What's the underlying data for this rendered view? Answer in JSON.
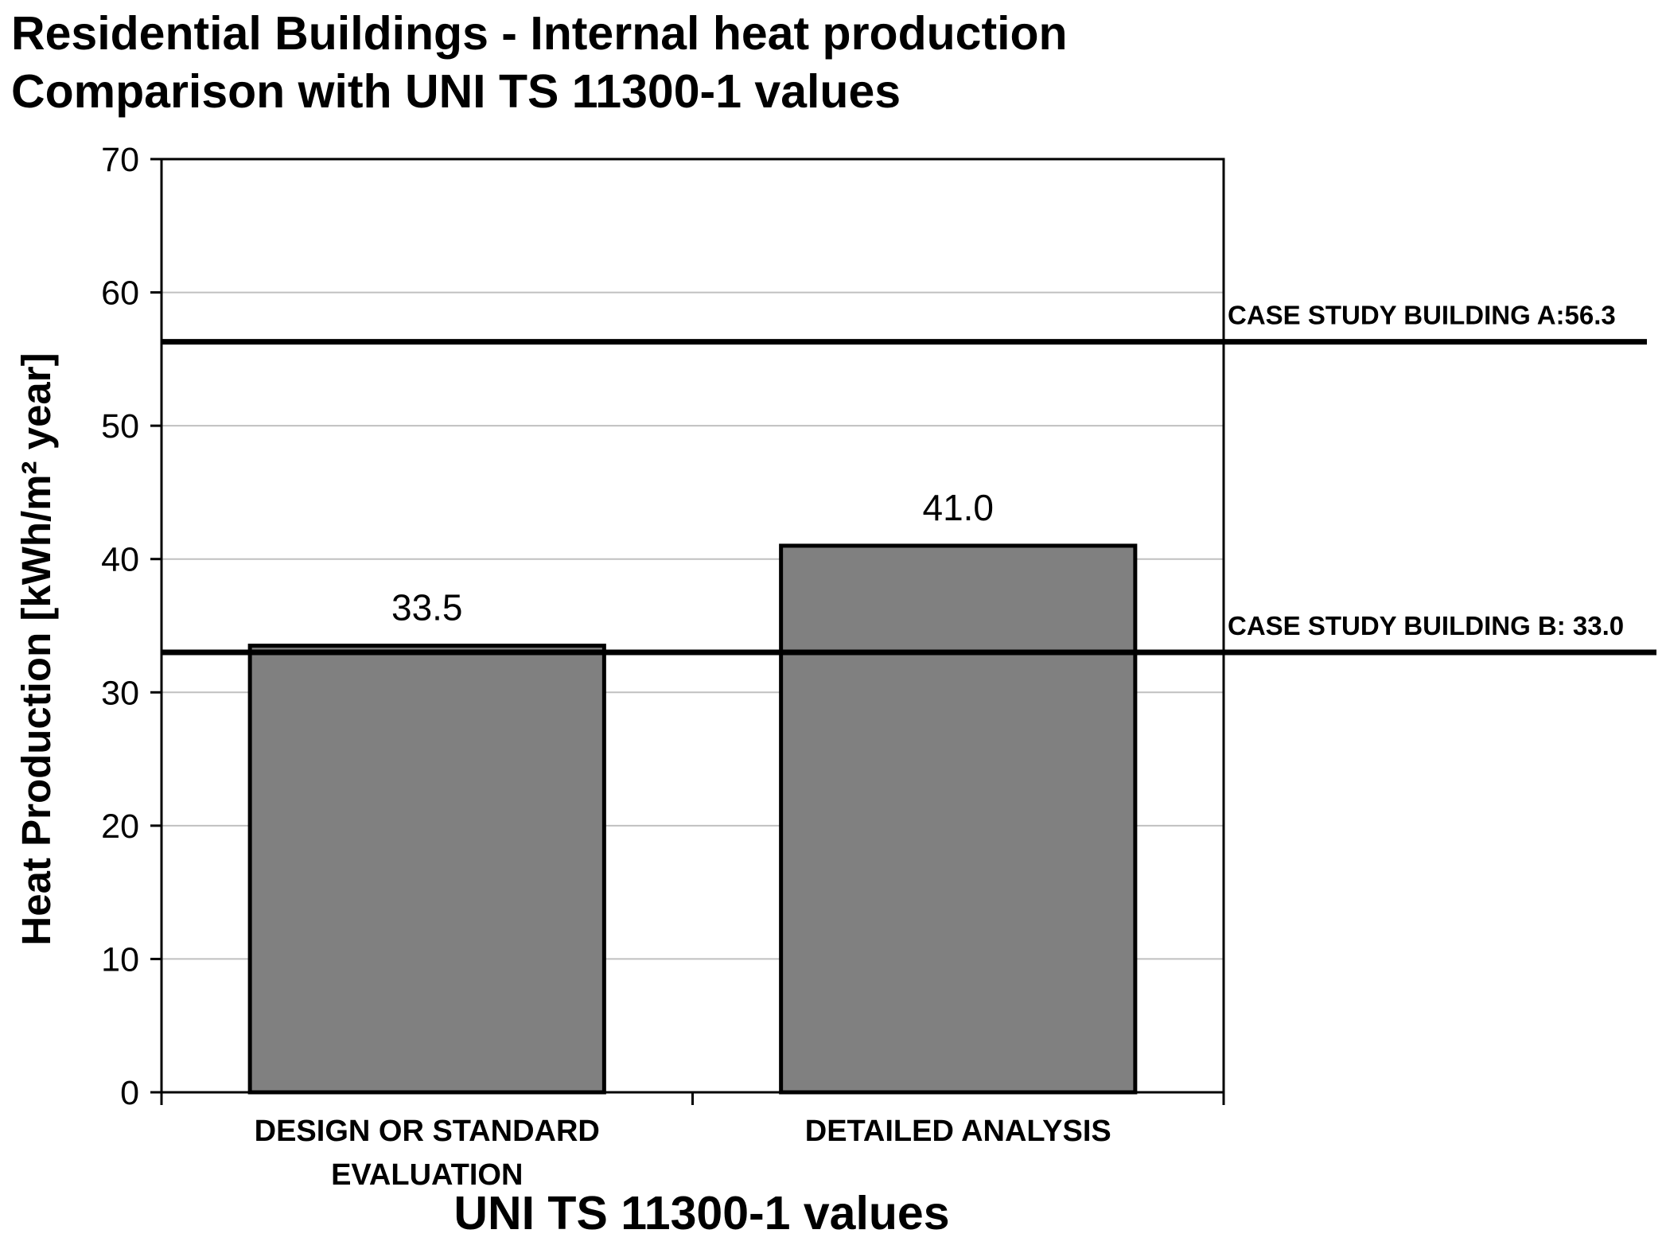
{
  "chart_data": {
    "type": "bar",
    "title": "Residential Buildings - Internal heat production",
    "subtitle": "Comparison with UNI TS 11300-1 values",
    "xlabel": "UNI TS 11300-1 values",
    "ylabel": "Heat Production [kWh/m² year]",
    "ylim": [
      0,
      70
    ],
    "yticks": [
      "0",
      "10",
      "20",
      "30",
      "40",
      "50",
      "60",
      "70"
    ],
    "grid": true,
    "categories": [
      "DESIGN OR STANDARD EVALUATION",
      "DETAILED ANALYSIS"
    ],
    "category_lines": [
      [
        "DESIGN OR STANDARD",
        "EVALUATION"
      ],
      [
        "DETAILED ANALYSIS"
      ]
    ],
    "values": [
      33.5,
      41.0
    ],
    "value_labels": [
      "33.5",
      "41.0"
    ],
    "bar_color": "#808080",
    "reference_lines": [
      {
        "label": "CASE STUDY BUILDING A:56.3",
        "value": 56.3
      },
      {
        "label": "CASE STUDY BUILDING B: 33.0",
        "value": 33.0
      }
    ]
  }
}
